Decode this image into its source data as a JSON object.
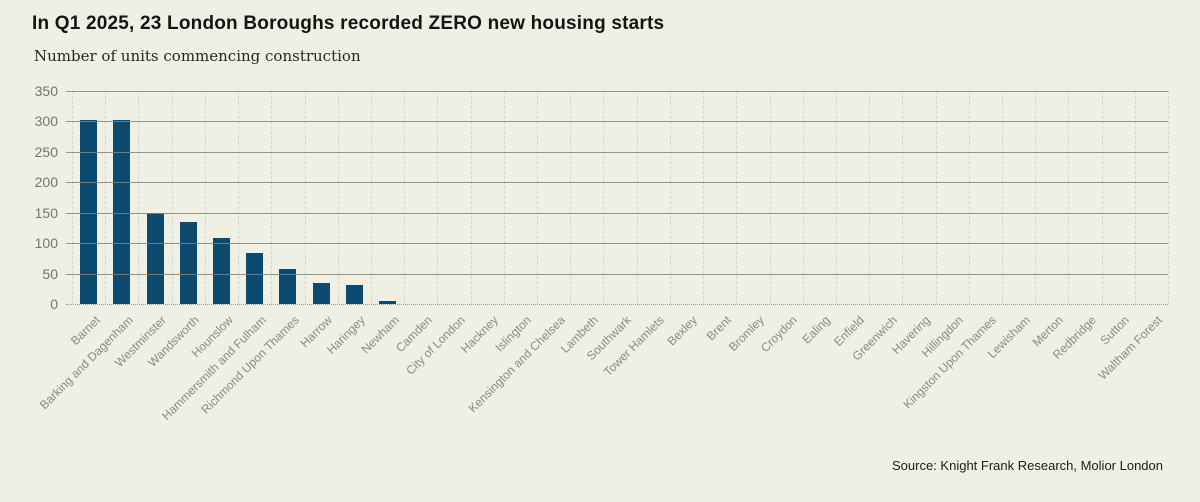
{
  "header": {
    "title": "In Q1 2025, 23 London Boroughs recorded ZERO new housing starts",
    "subtitle": "Number of units commencing construction"
  },
  "footer": {
    "source": "Source: Knight Frank Research, Molior London"
  },
  "chart_data": {
    "type": "bar",
    "title": "In Q1 2025, 23 London Boroughs recorded ZERO new housing starts",
    "subtitle": "Number of units commencing construction",
    "source": "Source: Knight Frank Research, Molior London",
    "categories": [
      "Barnet",
      "Barking and Dagenham",
      "Westminster",
      "Wandsworth",
      "Hounslow",
      "Hammersmith and Fulham",
      "Richmond Upon Thames",
      "Harrow",
      "Haringey",
      "Newham",
      "Camden",
      "City of London",
      "Hackney",
      "Islington",
      "Kensington and Chelsea",
      "Lambeth",
      "Southwark",
      "Tower Hamlets",
      "Bexley",
      "Brent",
      "Bromley",
      "Croydon",
      "Ealing",
      "Enfield",
      "Greenwich",
      "Havering",
      "Hillingdon",
      "Kingston Upon Thames",
      "Lewisham",
      "Merton",
      "Redbridge",
      "Sutton",
      "Waltham Forest"
    ],
    "values": [
      303,
      303,
      150,
      135,
      108,
      83,
      57,
      34,
      31,
      5,
      0,
      0,
      0,
      0,
      0,
      0,
      0,
      0,
      0,
      0,
      0,
      0,
      0,
      0,
      0,
      0,
      0,
      0,
      0,
      0,
      0,
      0,
      0
    ],
    "xlabel": "",
    "ylabel": "",
    "ylim": [
      0,
      350
    ],
    "yticks": [
      0,
      50,
      100,
      150,
      200,
      250,
      300,
      350
    ],
    "grid": "horizontal",
    "legend": "none",
    "bar_color": "#0d4a70",
    "background_color": "#f0efe4",
    "gridline_color": "#82827a",
    "axis_label_color": "#8a8a82"
  }
}
